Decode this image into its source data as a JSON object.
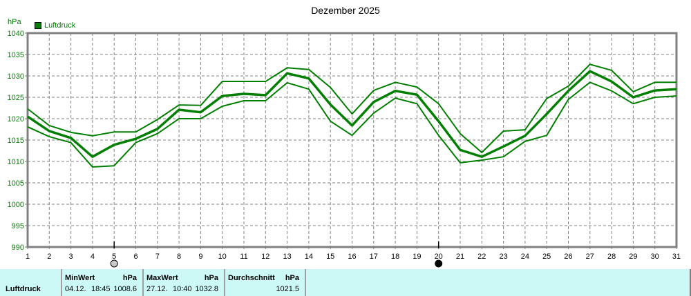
{
  "title": "Dezember 2025",
  "y_unit": "hPa",
  "legend": {
    "label": "Luftdruck",
    "color": "#007f00"
  },
  "markers": [
    {
      "day": 5,
      "type": "full-moon-icon"
    },
    {
      "day": 20,
      "type": "new-moon-icon"
    }
  ],
  "footer": {
    "row_label": "Luftdruck",
    "min": {
      "header": "MinWert",
      "unit": "hPa",
      "date": "04.12.",
      "time": "18:45",
      "value": "1008.6"
    },
    "max": {
      "header": "MaxWert",
      "unit": "hPa",
      "date": "27.12.",
      "time": "10:40",
      "value": "1032.8"
    },
    "avg": {
      "header": "Durchschnitt",
      "unit": "hPa",
      "value": "1021.5"
    }
  },
  "chart_data": {
    "type": "line",
    "title": "Dezember 2025",
    "xlabel": "",
    "ylabel": "hPa",
    "x": [
      1,
      2,
      3,
      4,
      5,
      6,
      7,
      8,
      9,
      10,
      11,
      12,
      13,
      14,
      15,
      16,
      17,
      18,
      19,
      20,
      21,
      22,
      23,
      24,
      25,
      26,
      27,
      28,
      29,
      30,
      31
    ],
    "ylim": [
      990,
      1040
    ],
    "yticks": [
      990,
      995,
      1000,
      1005,
      1010,
      1015,
      1020,
      1025,
      1030,
      1035,
      1040
    ],
    "grid": true,
    "legend": [
      "Luftdruck"
    ],
    "legend_position": "top-left",
    "series": [
      {
        "name": "Luftdruck max",
        "values": [
          1022.3,
          1018.4,
          1016.8,
          1016.0,
          1016.9,
          1016.9,
          1019.8,
          1023.2,
          1023.1,
          1028.7,
          1028.7,
          1028.7,
          1031.9,
          1031.5,
          1027.3,
          1021.1,
          1026.6,
          1028.5,
          1027.4,
          1023.5,
          1016.5,
          1012.1,
          1017.1,
          1017.4,
          1024.7,
          1027.6,
          1032.7,
          1031.3,
          1026.3,
          1028.5,
          1028.5
        ]
      },
      {
        "name": "Luftdruck avg",
        "values": [
          1020.5,
          1017.1,
          1015.5,
          1011.1,
          1013.9,
          1015.3,
          1017.6,
          1022.1,
          1021.5,
          1025.3,
          1025.8,
          1025.5,
          1030.6,
          1029.4,
          1023.3,
          1018.4,
          1023.9,
          1026.5,
          1025.6,
          1019.4,
          1012.7,
          1011.1,
          1013.5,
          1016.0,
          1021.1,
          1026.5,
          1031.1,
          1028.7,
          1025.0,
          1026.6,
          1026.9
        ]
      },
      {
        "name": "Luftdruck min",
        "values": [
          1018.1,
          1015.8,
          1014.4,
          1008.7,
          1009.0,
          1014.4,
          1016.5,
          1020.0,
          1020.0,
          1022.9,
          1024.2,
          1024.2,
          1028.4,
          1026.9,
          1019.4,
          1016.1,
          1021.3,
          1024.8,
          1023.5,
          1016.1,
          1009.7,
          1010.3,
          1011.1,
          1014.7,
          1016.1,
          1024.5,
          1028.5,
          1026.5,
          1023.5,
          1025.0,
          1025.3
        ]
      }
    ]
  }
}
